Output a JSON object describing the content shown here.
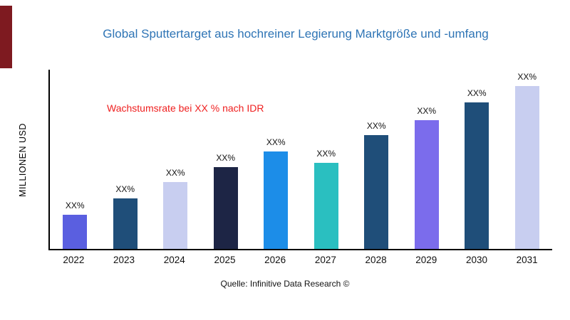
{
  "colors": {
    "title": "#2E74B5",
    "annotation": "#EF2020",
    "accent_bar": "#7E1A20",
    "axis": "#000000"
  },
  "chart_data": {
    "type": "bar",
    "title": "Global Sputtertarget aus hochreiner Legierung Marktgröße und -umfang",
    "ylabel": "MILLIONEN USD",
    "xlabel": "",
    "annotation": "Wachstumsrate bei XX % nach IDR",
    "source": "Quelle: Infinitive Data Research ©",
    "categories": [
      "2022",
      "2023",
      "2024",
      "2025",
      "2026",
      "2027",
      "2028",
      "2029",
      "2030",
      "2031"
    ],
    "values": [
      21,
      31,
      41,
      50,
      60,
      53,
      70,
      79,
      90,
      100
    ],
    "value_labels": [
      "XX%",
      "XX%",
      "XX%",
      "XX%",
      "XX%",
      "XX%",
      "XX%",
      "XX%",
      "XX%",
      "XX%"
    ],
    "bar_colors": [
      "#5A5FE0",
      "#1F4E79",
      "#C8CEF0",
      "#1D2545",
      "#1C8DE8",
      "#2ABFC0",
      "#1F4E79",
      "#7B6CEC",
      "#1F4E79",
      "#C8CEF0"
    ],
    "ylim": [
      0,
      110
    ],
    "grid": false,
    "legend": false
  }
}
